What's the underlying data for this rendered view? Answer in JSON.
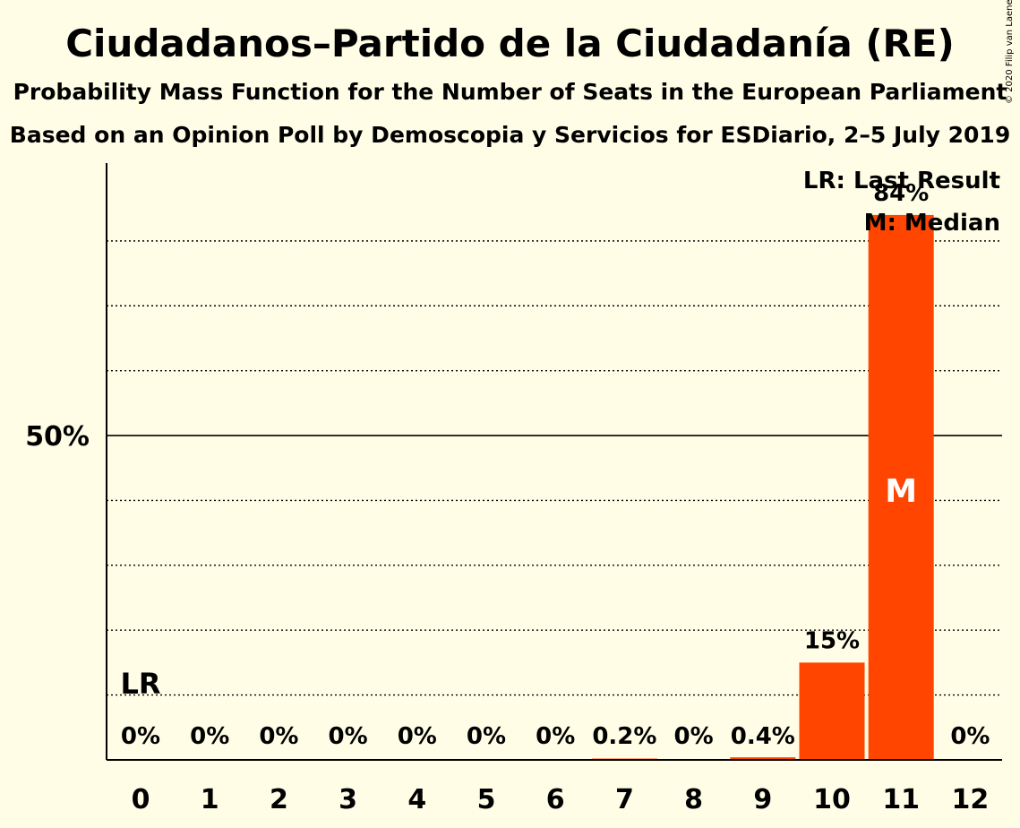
{
  "chart_data": {
    "type": "bar",
    "title": "Ciudadanos–Partido de la Ciudadanía (RE)",
    "subtitle": "Probability Mass Function for the Number of Seats in the European Parliament",
    "subtitle2": "Based on an Opinion Poll by Demoscopia y Servicios for ESDiario, 2–5 July 2019",
    "copyright": "© 2020 Filip van Laenen",
    "categories": [
      "0",
      "1",
      "2",
      "3",
      "4",
      "5",
      "6",
      "7",
      "8",
      "9",
      "10",
      "11",
      "12"
    ],
    "values": [
      0,
      0,
      0,
      0,
      0,
      0,
      0,
      0.2,
      0,
      0.4,
      15,
      84,
      0
    ],
    "value_labels": [
      "0%",
      "0%",
      "0%",
      "0%",
      "0%",
      "0%",
      "0%",
      "0.2%",
      "0%",
      "0.4%",
      "15%",
      "84%",
      "0%"
    ],
    "ylim": [
      0,
      92
    ],
    "y_tick_label": "50%",
    "y_tick_value": 50,
    "gridlines": [
      10,
      20,
      30,
      40,
      60,
      70,
      80
    ],
    "last_result_index": 0,
    "last_result_label": "LR",
    "median_index": 11,
    "median_label": "M",
    "legend": {
      "last_result": "LR: Last Result",
      "median": "M: Median",
      "placement": "top-right"
    },
    "bar_color": "#FF4500",
    "background": "#FFFDE6"
  }
}
